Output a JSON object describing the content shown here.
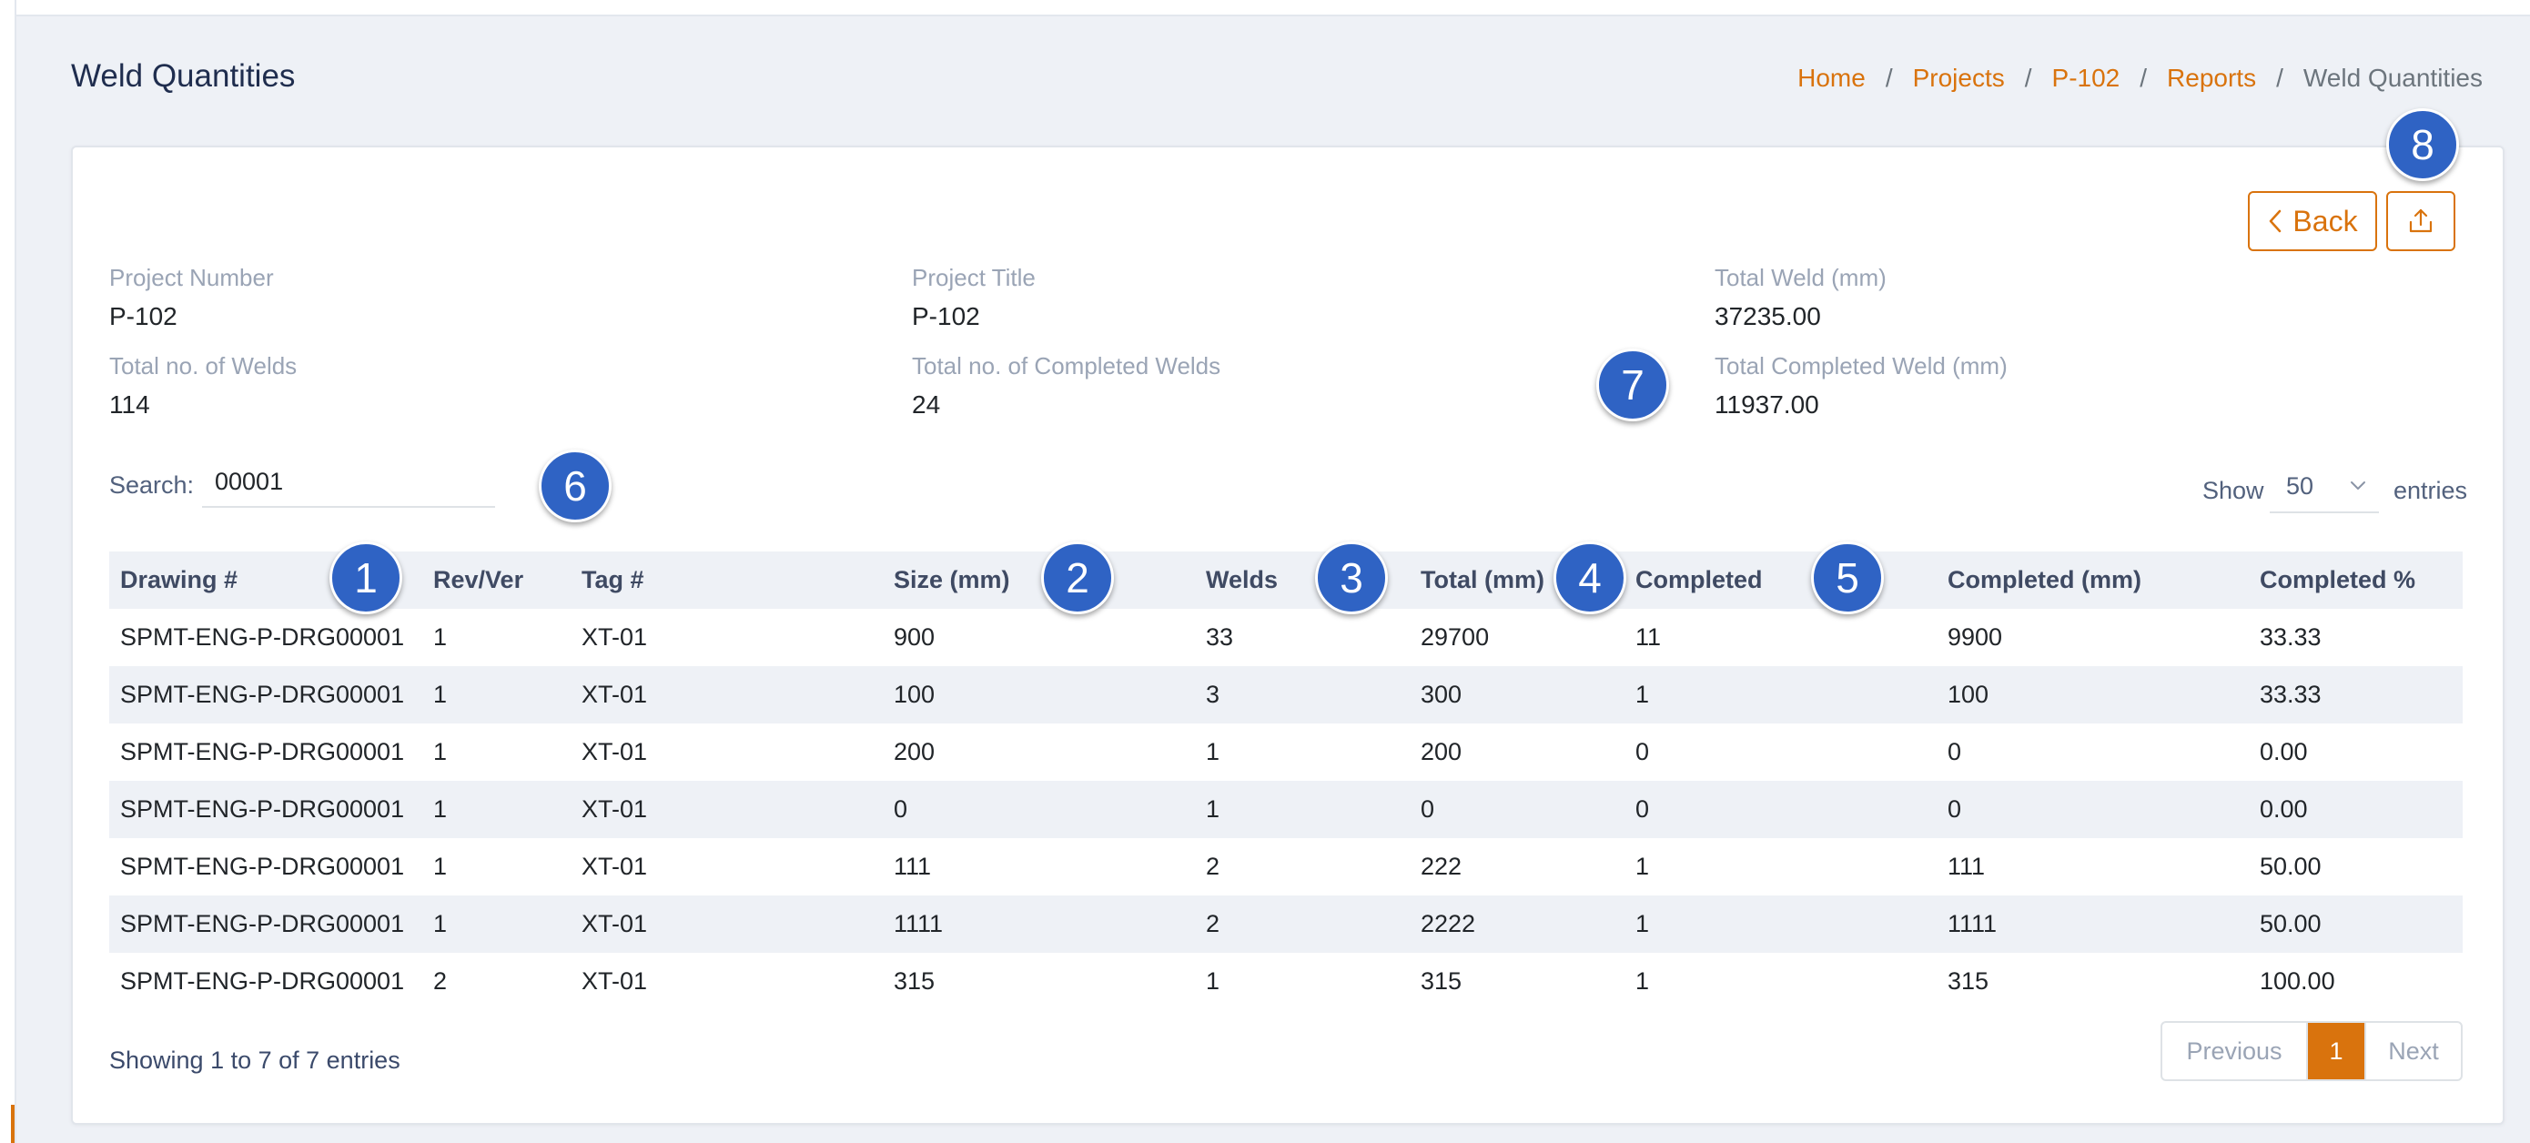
{
  "page": {
    "title": "Weld Quantities"
  },
  "breadcrumb": {
    "items": [
      "Home",
      "Projects",
      "P-102",
      "Reports"
    ],
    "separator": "/",
    "current": "Weld Quantities"
  },
  "actions": {
    "back_label": "Back",
    "back_icon": "chevron-left-icon",
    "export_icon": "upload-icon"
  },
  "summary": {
    "project_number": {
      "label": "Project Number",
      "value": "P-102"
    },
    "project_title": {
      "label": "Project Title",
      "value": "P-102"
    },
    "total_weld_mm": {
      "label": "Total Weld (mm)",
      "value": "37235.00"
    },
    "total_welds": {
      "label": "Total no. of Welds",
      "value": "114"
    },
    "total_completed_welds": {
      "label": "Total no. of Completed Welds",
      "value": "24"
    },
    "total_completed_weld_mm": {
      "label": "Total Completed Weld (mm)",
      "value": "11937.00"
    }
  },
  "search": {
    "label": "Search:",
    "value": "00001"
  },
  "page_length": {
    "show_label": "Show",
    "value": "50",
    "entries_label": "entries"
  },
  "table": {
    "columns": [
      "Drawing #",
      "Rev/Ver",
      "Tag #",
      "Size (mm)",
      "Welds",
      "Total (mm)",
      "Completed",
      "Completed (mm)",
      "Completed %"
    ],
    "rows": [
      [
        "SPMT-ENG-P-DRG00001",
        "1",
        "XT-01",
        "900",
        "33",
        "29700",
        "11",
        "9900",
        "33.33"
      ],
      [
        "SPMT-ENG-P-DRG00001",
        "1",
        "XT-01",
        "100",
        "3",
        "300",
        "1",
        "100",
        "33.33"
      ],
      [
        "SPMT-ENG-P-DRG00001",
        "1",
        "XT-01",
        "200",
        "1",
        "200",
        "0",
        "0",
        "0.00"
      ],
      [
        "SPMT-ENG-P-DRG00001",
        "1",
        "XT-01",
        "0",
        "1",
        "0",
        "0",
        "0",
        "0.00"
      ],
      [
        "SPMT-ENG-P-DRG00001",
        "1",
        "XT-01",
        "111",
        "2",
        "222",
        "1",
        "111",
        "50.00"
      ],
      [
        "SPMT-ENG-P-DRG00001",
        "1",
        "XT-01",
        "1111",
        "2",
        "2222",
        "1",
        "1111",
        "50.00"
      ],
      [
        "SPMT-ENG-P-DRG00001",
        "2",
        "XT-01",
        "315",
        "1",
        "315",
        "1",
        "315",
        "100.00"
      ]
    ]
  },
  "footer": {
    "showing": "Showing 1 to 7 of 7 entries"
  },
  "pagination": {
    "previous": "Previous",
    "current": "1",
    "next": "Next"
  },
  "markers": [
    "1",
    "2",
    "3",
    "4",
    "5",
    "6",
    "7",
    "8"
  ],
  "colors": {
    "accent": "#d9730d",
    "marker": "#2f63c4",
    "title": "#1f2d4e",
    "muted_label": "#9aa4b5",
    "stripe": "#eef1f6"
  }
}
